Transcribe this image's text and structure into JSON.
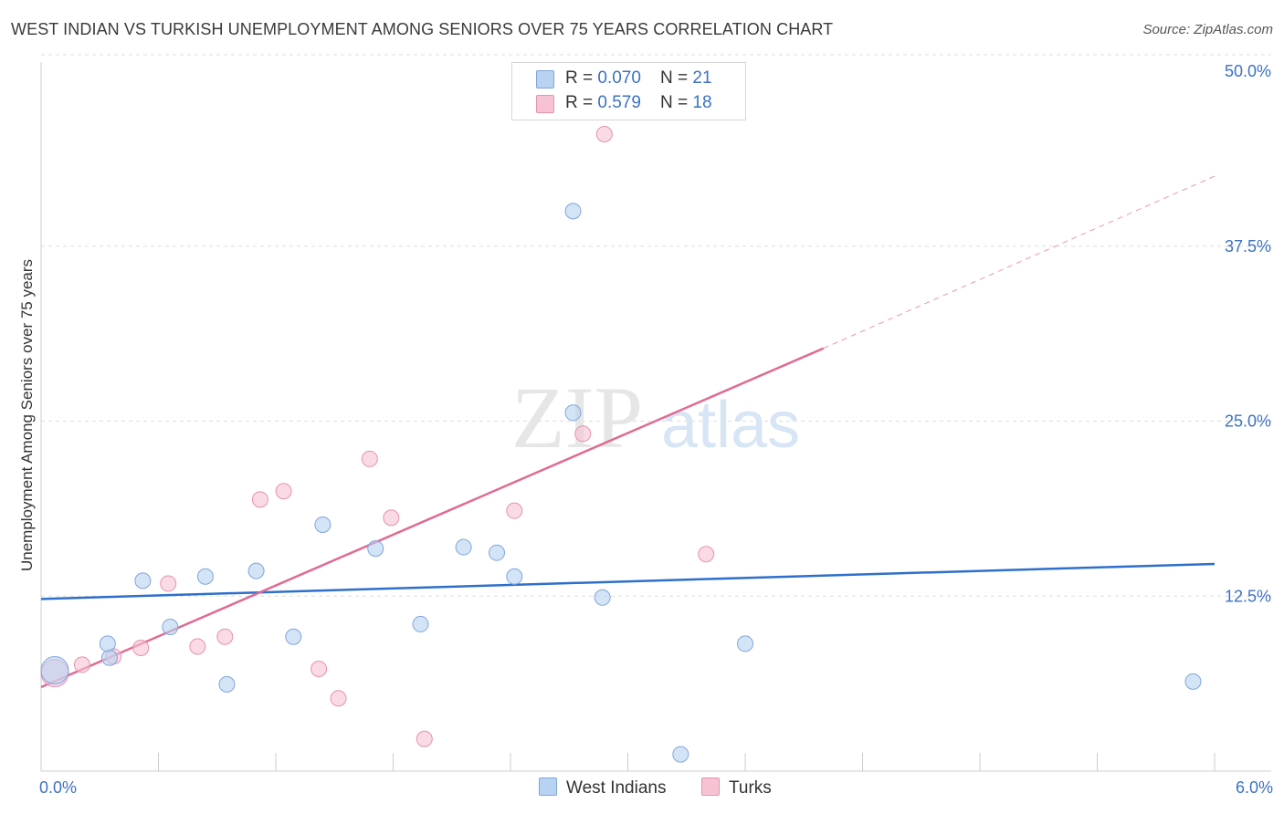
{
  "title": "WEST INDIAN VS TURKISH UNEMPLOYMENT AMONG SENIORS OVER 75 YEARS CORRELATION CHART",
  "source": "Source: ZipAtlas.com",
  "watermark": {
    "zip": "ZIP",
    "atlas": "atlas"
  },
  "legend": {
    "west_indians": {
      "r_label": "R = ",
      "r_value": "0.070",
      "n_label": "N = ",
      "n_value": "21"
    },
    "turks": {
      "r_label": "R = ",
      "r_value": "0.579",
      "n_label": "N = ",
      "n_value": "18"
    }
  },
  "bottom_legend": {
    "west_indians": "West Indians",
    "turks": "Turks"
  },
  "colors": {
    "west_indians_fill": "#b8d2f2",
    "west_indians_stroke": "#7fa6d9",
    "west_indians_line": "#2f6fcc",
    "turks_fill": "#f7c3d3",
    "turks_stroke": "#e592ad",
    "turks_line": "#e06a94",
    "tick_label": "#3b72c4",
    "grid": "#dddddd"
  },
  "chart_data": {
    "type": "scatter",
    "title": "WEST INDIAN VS TURKISH UNEMPLOYMENT AMONG SENIORS OVER 75 YEARS CORRELATION CHART",
    "xlabel": "",
    "ylabel": "Unemployment Among Seniors over 75 years",
    "xlim": [
      0,
      6
    ],
    "ylim": [
      0,
      50
    ],
    "x_tick_labels": [
      "0.0%",
      "6.0%"
    ],
    "y_ticks": [
      12.5,
      25.0,
      37.5,
      50.0
    ],
    "y_tick_labels": [
      "12.5%",
      "25.0%",
      "37.5%",
      "50.0%"
    ],
    "grid": true,
    "legend_position": "top-center",
    "series": [
      {
        "name": "West Indians",
        "points": [
          {
            "x": 0.07,
            "y": 7.2,
            "big": true
          },
          {
            "x": 0.35,
            "y": 8.1
          },
          {
            "x": 0.34,
            "y": 9.1
          },
          {
            "x": 0.52,
            "y": 13.6
          },
          {
            "x": 0.66,
            "y": 10.3
          },
          {
            "x": 0.84,
            "y": 13.9
          },
          {
            "x": 0.95,
            "y": 6.2
          },
          {
            "x": 1.1,
            "y": 14.3
          },
          {
            "x": 1.29,
            "y": 9.6
          },
          {
            "x": 1.44,
            "y": 17.6
          },
          {
            "x": 1.71,
            "y": 15.9
          },
          {
            "x": 1.94,
            "y": 10.5
          },
          {
            "x": 2.16,
            "y": 16.0
          },
          {
            "x": 2.33,
            "y": 15.6
          },
          {
            "x": 2.42,
            "y": 13.9
          },
          {
            "x": 2.72,
            "y": 25.6
          },
          {
            "x": 2.72,
            "y": 40.0
          },
          {
            "x": 2.87,
            "y": 12.4
          },
          {
            "x": 3.27,
            "y": 1.2
          },
          {
            "x": 3.6,
            "y": 9.1
          },
          {
            "x": 5.89,
            "y": 6.4
          }
        ],
        "trend": {
          "x": [
            0,
            6
          ],
          "y": [
            12.3,
            14.8
          ]
        }
      },
      {
        "name": "Turks",
        "points": [
          {
            "x": 0.07,
            "y": 7.0,
            "big": true
          },
          {
            "x": 0.21,
            "y": 7.6
          },
          {
            "x": 0.37,
            "y": 8.2
          },
          {
            "x": 0.51,
            "y": 8.8
          },
          {
            "x": 0.65,
            "y": 13.4
          },
          {
            "x": 0.8,
            "y": 8.9
          },
          {
            "x": 0.94,
            "y": 9.6
          },
          {
            "x": 1.12,
            "y": 19.4
          },
          {
            "x": 1.24,
            "y": 20.0
          },
          {
            "x": 1.42,
            "y": 7.3
          },
          {
            "x": 1.52,
            "y": 5.2
          },
          {
            "x": 1.68,
            "y": 22.3
          },
          {
            "x": 1.79,
            "y": 18.1
          },
          {
            "x": 1.96,
            "y": 2.3
          },
          {
            "x": 2.42,
            "y": 18.6
          },
          {
            "x": 2.77,
            "y": 24.1
          },
          {
            "x": 2.88,
            "y": 45.5
          },
          {
            "x": 3.4,
            "y": 15.5
          }
        ],
        "trend": {
          "x": [
            0,
            4.0
          ],
          "y": [
            6.0,
            30.2
          ]
        },
        "trend_dashed": {
          "x": [
            4.0,
            6.0
          ],
          "y": [
            30.2,
            42.5
          ]
        }
      }
    ]
  }
}
